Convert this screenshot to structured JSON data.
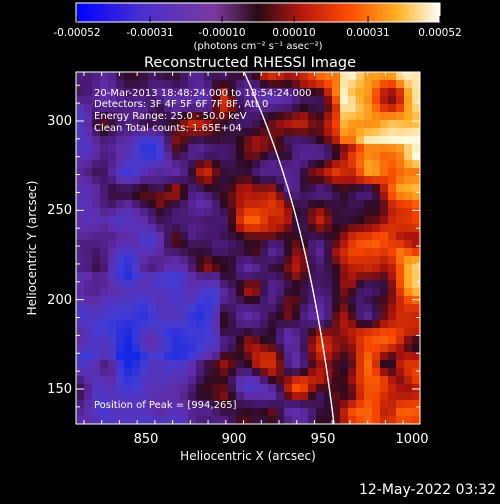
{
  "colorbar": {
    "tick_labels": [
      "-0.00052",
      "-0.00031",
      "-0.00010",
      "0.00010",
      "0.00031",
      "0.00052"
    ],
    "units_label": "(photons cm⁻² s⁻¹ asec⁻²)"
  },
  "plot": {
    "title": "Reconstructed RHESSI Image",
    "xlabel": "Heliocentric X (arcsec)",
    "ylabel": "Heliocentric Y (arcsec)",
    "x_ticks": [
      "850",
      "900",
      "950",
      "1000"
    ],
    "y_ticks": [
      "150",
      "200",
      "250",
      "300"
    ],
    "annotation_lines": [
      "20-Mar-2013 18:48:24.000 to 18:54:24.000",
      "Detectors: 3F 4F 5F 6F 7F 8F, Att 0",
      "Energy Range: 25.0 - 50.0 keV",
      "Clean     Total counts: 1.65E+04"
    ],
    "peak_label": "Position of Peak = [994,265]"
  },
  "footer": {
    "timestamp": "12-May-2022 03:32"
  }
}
